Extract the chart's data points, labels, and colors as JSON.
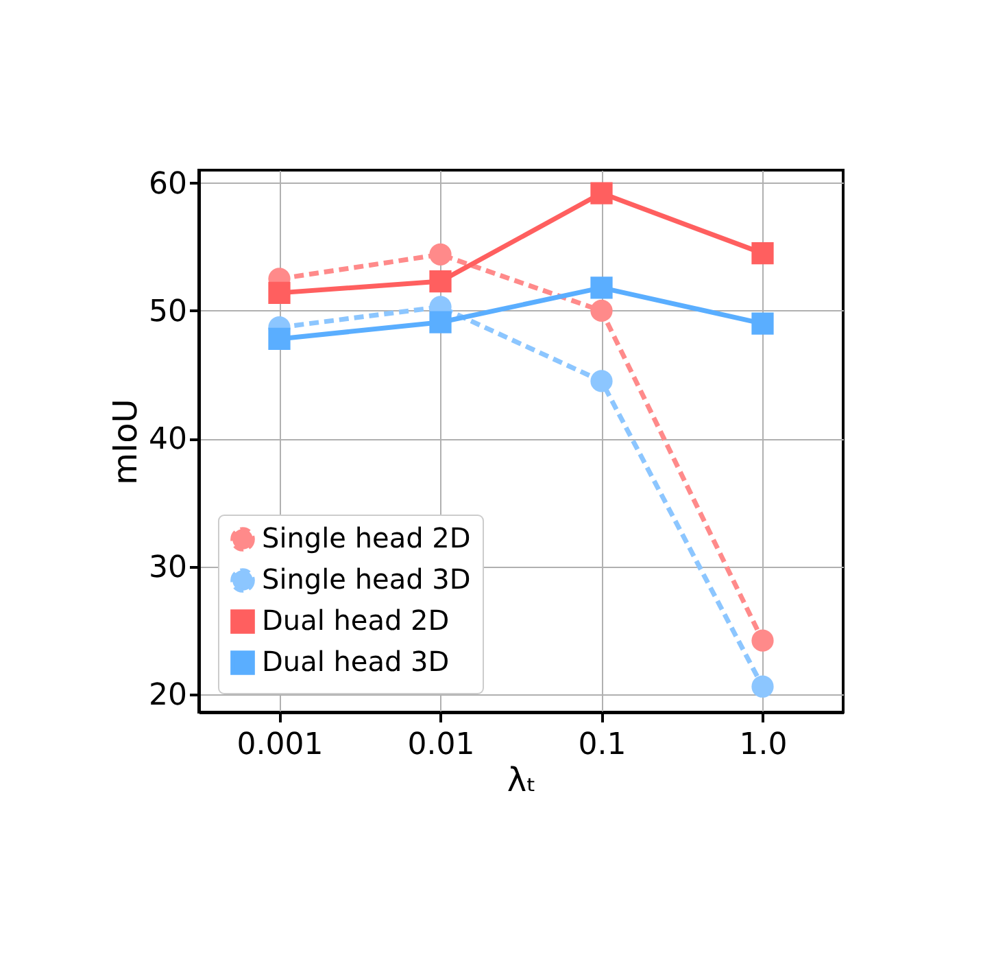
{
  "chart_data": {
    "type": "line",
    "xlabel": "λₜ",
    "ylabel": "mIoU",
    "categories": [
      "0.001",
      "0.01",
      "0.1",
      "1.0"
    ],
    "series": [
      {
        "name": "Single head 2D",
        "color": "#ff8a8a",
        "marker": "circle",
        "line_style": "dashed",
        "values": [
          52.5,
          54.4,
          50.0,
          24.2
        ]
      },
      {
        "name": "Single head 3D",
        "color": "#8cc6ff",
        "marker": "circle",
        "line_style": "dashed",
        "values": [
          48.7,
          50.3,
          44.5,
          20.6
        ]
      },
      {
        "name": "Dual head 2D",
        "color": "#ff5f5f",
        "marker": "square",
        "line_style": "solid",
        "values": [
          51.4,
          52.3,
          59.2,
          54.5
        ]
      },
      {
        "name": "Dual head 3D",
        "color": "#5aaeff",
        "marker": "square",
        "line_style": "solid",
        "values": [
          47.8,
          49.1,
          51.8,
          49.0
        ]
      }
    ],
    "ylim": [
      18.6,
      61.0
    ],
    "yticks": [
      20,
      30,
      40,
      50,
      60
    ],
    "grid": true,
    "legend": "bottom left"
  }
}
